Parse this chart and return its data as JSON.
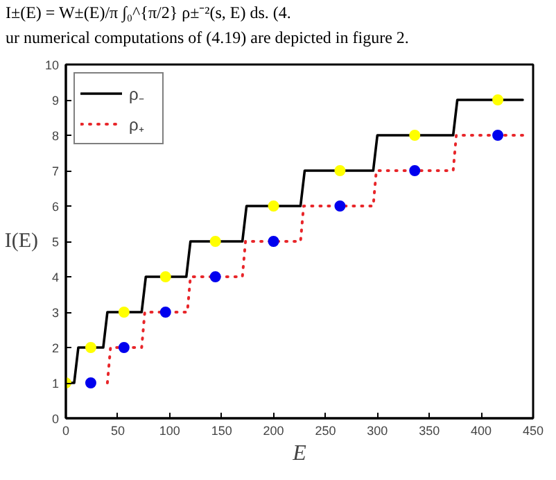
{
  "chart_data": {
    "type": "line",
    "xlabel": "E",
    "ylabel": "I(E)",
    "annotations": [
      "I±(E) = W±(E)/π ∫₀^{π/2} ρ±⁻²(s, E) ds.    (4.",
      "ur numerical computations of (4.19) are depicted in figure 2."
    ],
    "xlim": [
      0,
      450
    ],
    "ylim": [
      0,
      10
    ],
    "xticks": [
      0,
      50,
      100,
      150,
      200,
      250,
      300,
      350,
      400,
      450
    ],
    "yticks": [
      0,
      1,
      2,
      3,
      4,
      5,
      6,
      7,
      8,
      9,
      10
    ],
    "legend": "top left",
    "grid": false,
    "series": [
      {
        "name": "ρ₋",
        "color": "#000000",
        "line_style": "solid",
        "x": [
          0,
          8,
          12,
          36,
          40,
          73,
          77,
          116,
          120,
          170,
          174,
          226,
          230,
          296,
          300,
          373,
          377,
          440
        ],
        "values": [
          1,
          1,
          2,
          2,
          3,
          3,
          4,
          4,
          5,
          5,
          6,
          6,
          7,
          7,
          8,
          8,
          9,
          9
        ]
      },
      {
        "name": "ρ₊",
        "color": "#e8262a",
        "line_style": "dotted",
        "x": [
          40,
          43,
          73,
          76,
          117,
          120,
          170,
          173,
          226,
          229,
          296,
          299,
          373,
          376,
          440
        ],
        "values": [
          1,
          2,
          2,
          3,
          3,
          4,
          4,
          5,
          5,
          6,
          6,
          7,
          7,
          8,
          8
        ]
      },
      {
        "type": "scatter",
        "color": "#ffff00",
        "marker": "circle",
        "x": [
          0,
          24,
          56,
          96,
          144,
          200,
          264,
          336,
          416
        ],
        "values": [
          1,
          2,
          3,
          4,
          5,
          6,
          7,
          8,
          9
        ]
      },
      {
        "type": "scatter",
        "color": "#0000ee",
        "marker": "circle",
        "x": [
          24,
          56,
          96,
          144,
          200,
          264,
          336,
          416
        ],
        "values": [
          1,
          2,
          3,
          4,
          5,
          6,
          7,
          8
        ]
      }
    ]
  }
}
